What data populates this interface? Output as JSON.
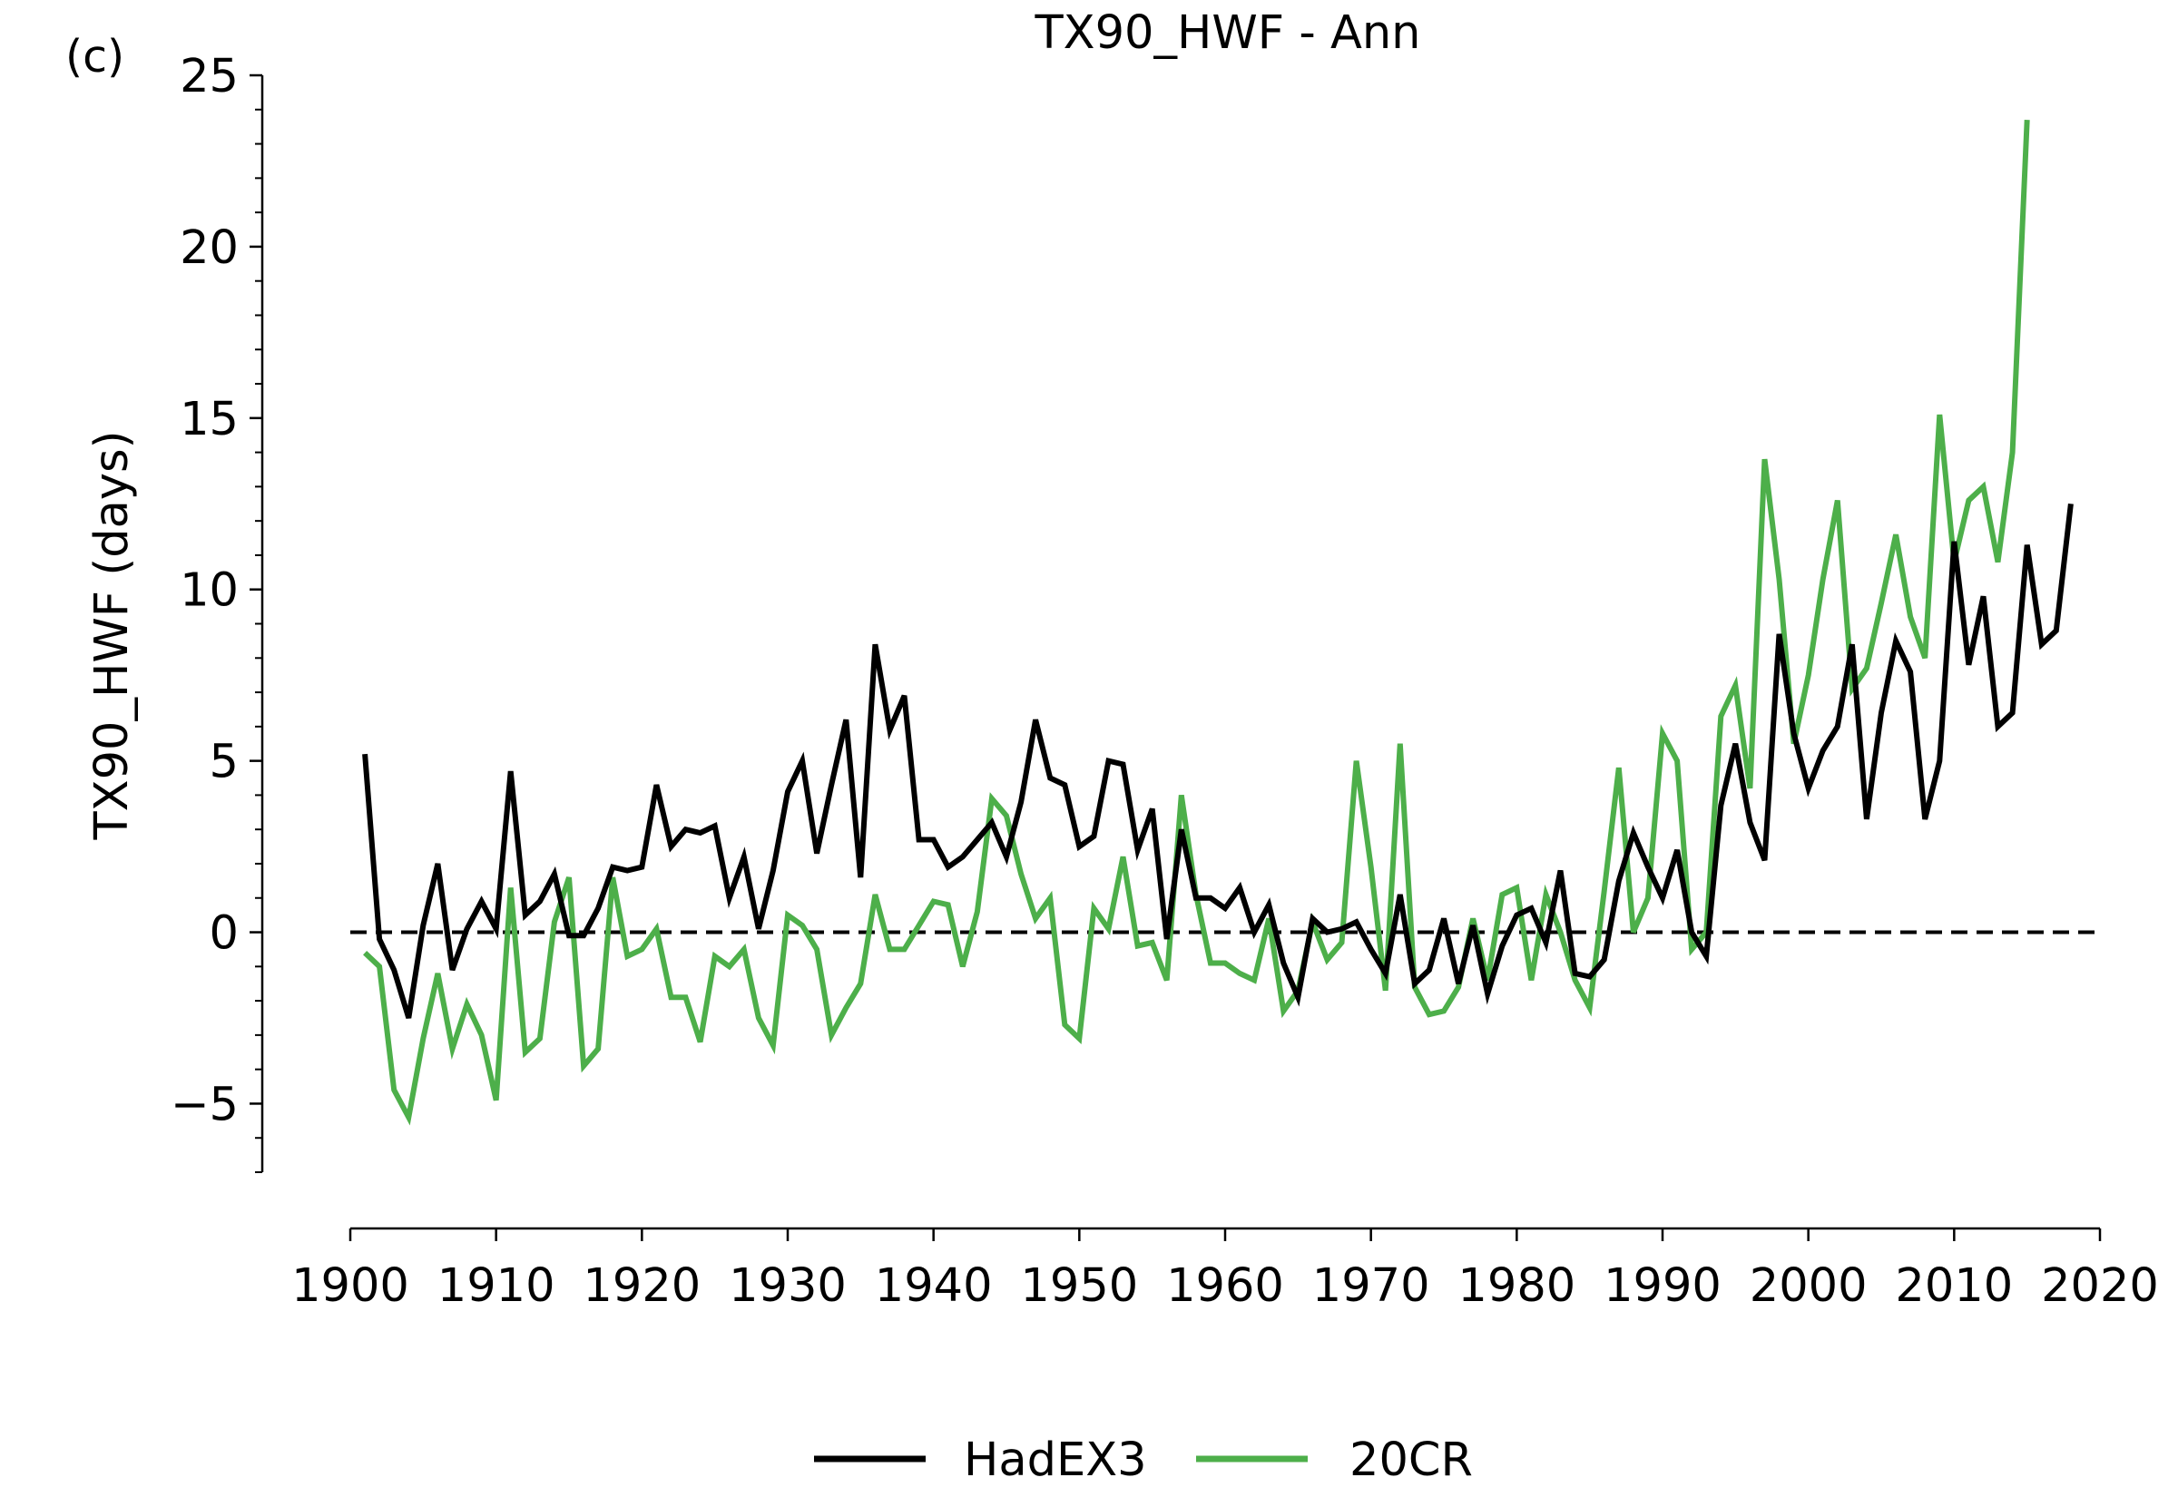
{
  "panel_label": "(c)",
  "chart_data": {
    "type": "line",
    "title": "TX90_HWF - Ann",
    "xlabel": "",
    "ylabel": "TX90_HWF (days)",
    "xlim": [
      1900,
      2020
    ],
    "ylim": [
      -7,
      25
    ],
    "x_ticks": [
      1900,
      1910,
      1920,
      1930,
      1940,
      1950,
      1960,
      1970,
      1980,
      1990,
      2000,
      2010,
      2020
    ],
    "y_ticks": [
      -5,
      0,
      5,
      10,
      15,
      20,
      25
    ],
    "y_tick_labels": [
      "−5",
      "0",
      "5",
      "10",
      "15",
      "20",
      "25"
    ],
    "reference_line": {
      "y": 0,
      "style": "dashed",
      "color": "#000000"
    },
    "legend_position": "bottom-center",
    "series": [
      {
        "name": "HadEX3",
        "color": "#000000",
        "x_start": 1901,
        "values": [
          5.2,
          -0.2,
          -1.1,
          -2.5,
          0.2,
          2.0,
          -1.1,
          0.1,
          0.9,
          0.1,
          4.7,
          0.5,
          0.9,
          1.7,
          -0.1,
          -0.1,
          0.7,
          1.9,
          1.8,
          1.9,
          4.3,
          2.5,
          3.0,
          2.9,
          3.1,
          1.0,
          2.2,
          0.1,
          1.8,
          4.1,
          5.0,
          2.3,
          4.3,
          6.2,
          1.6,
          8.4,
          5.9,
          6.9,
          2.7,
          2.7,
          1.9,
          2.2,
          2.7,
          3.2,
          2.2,
          3.8,
          6.2,
          4.5,
          4.3,
          2.5,
          2.8,
          5.0,
          4.9,
          2.4,
          3.6,
          -0.2,
          3.0,
          1.0,
          1.0,
          0.7,
          1.3,
          0.0,
          0.8,
          -0.9,
          -1.9,
          0.4,
          0.0,
          0.1,
          0.3,
          -0.5,
          -1.2,
          1.1,
          -1.5,
          -1.1,
          0.4,
          -1.5,
          0.2,
          -1.8,
          -0.4,
          0.5,
          0.7,
          -0.3,
          1.8,
          -1.2,
          -1.3,
          -0.8,
          1.5,
          2.9,
          1.9,
          1.0,
          2.4,
          0.0,
          -0.7,
          3.7,
          5.5,
          3.2,
          2.1,
          8.7,
          5.8,
          4.2,
          5.3,
          6.0,
          8.4,
          3.3,
          6.4,
          8.5,
          7.6,
          3.3,
          5.0,
          11.4,
          7.8,
          9.8,
          6.0,
          6.4,
          11.3,
          8.4,
          8.8,
          12.5
        ]
      },
      {
        "name": "20CR",
        "color": "#4daf4a",
        "x_start": 1901,
        "values": [
          -0.6,
          -1.0,
          -4.6,
          -5.4,
          -3.1,
          -1.2,
          -3.4,
          -2.1,
          -3.0,
          -4.9,
          1.3,
          -3.5,
          -3.1,
          0.3,
          1.6,
          -3.9,
          -3.4,
          1.6,
          -0.7,
          -0.5,
          0.1,
          -1.9,
          -1.9,
          -3.2,
          -0.7,
          -1.0,
          -0.5,
          -2.5,
          -3.3,
          0.5,
          0.2,
          -0.5,
          -3.0,
          -2.2,
          -1.5,
          1.1,
          -0.5,
          -0.5,
          0.2,
          0.9,
          0.8,
          -1.0,
          0.6,
          3.9,
          3.4,
          1.7,
          0.4,
          1.0,
          -2.7,
          -3.1,
          0.7,
          0.1,
          2.2,
          -0.4,
          -0.3,
          -1.4,
          4.0,
          1.1,
          -0.9,
          -0.9,
          -1.2,
          -1.4,
          0.4,
          -2.3,
          -1.7,
          0.3,
          -0.8,
          -0.3,
          5.0,
          1.9,
          -1.7,
          5.5,
          -1.6,
          -2.4,
          -2.3,
          -1.6,
          0.4,
          -1.4,
          1.1,
          1.3,
          -1.4,
          1.1,
          0.0,
          -1.4,
          -2.2,
          1.2,
          4.8,
          0.0,
          1.0,
          5.8,
          5.0,
          -0.5,
          0.0,
          6.3,
          7.2,
          4.2,
          13.8,
          10.3,
          5.5,
          7.5,
          10.3,
          12.6,
          7.1,
          7.7,
          9.6,
          11.6,
          9.2,
          8.0,
          15.1,
          10.8,
          12.6,
          13.0,
          10.8,
          14.0,
          23.7
        ]
      }
    ]
  }
}
